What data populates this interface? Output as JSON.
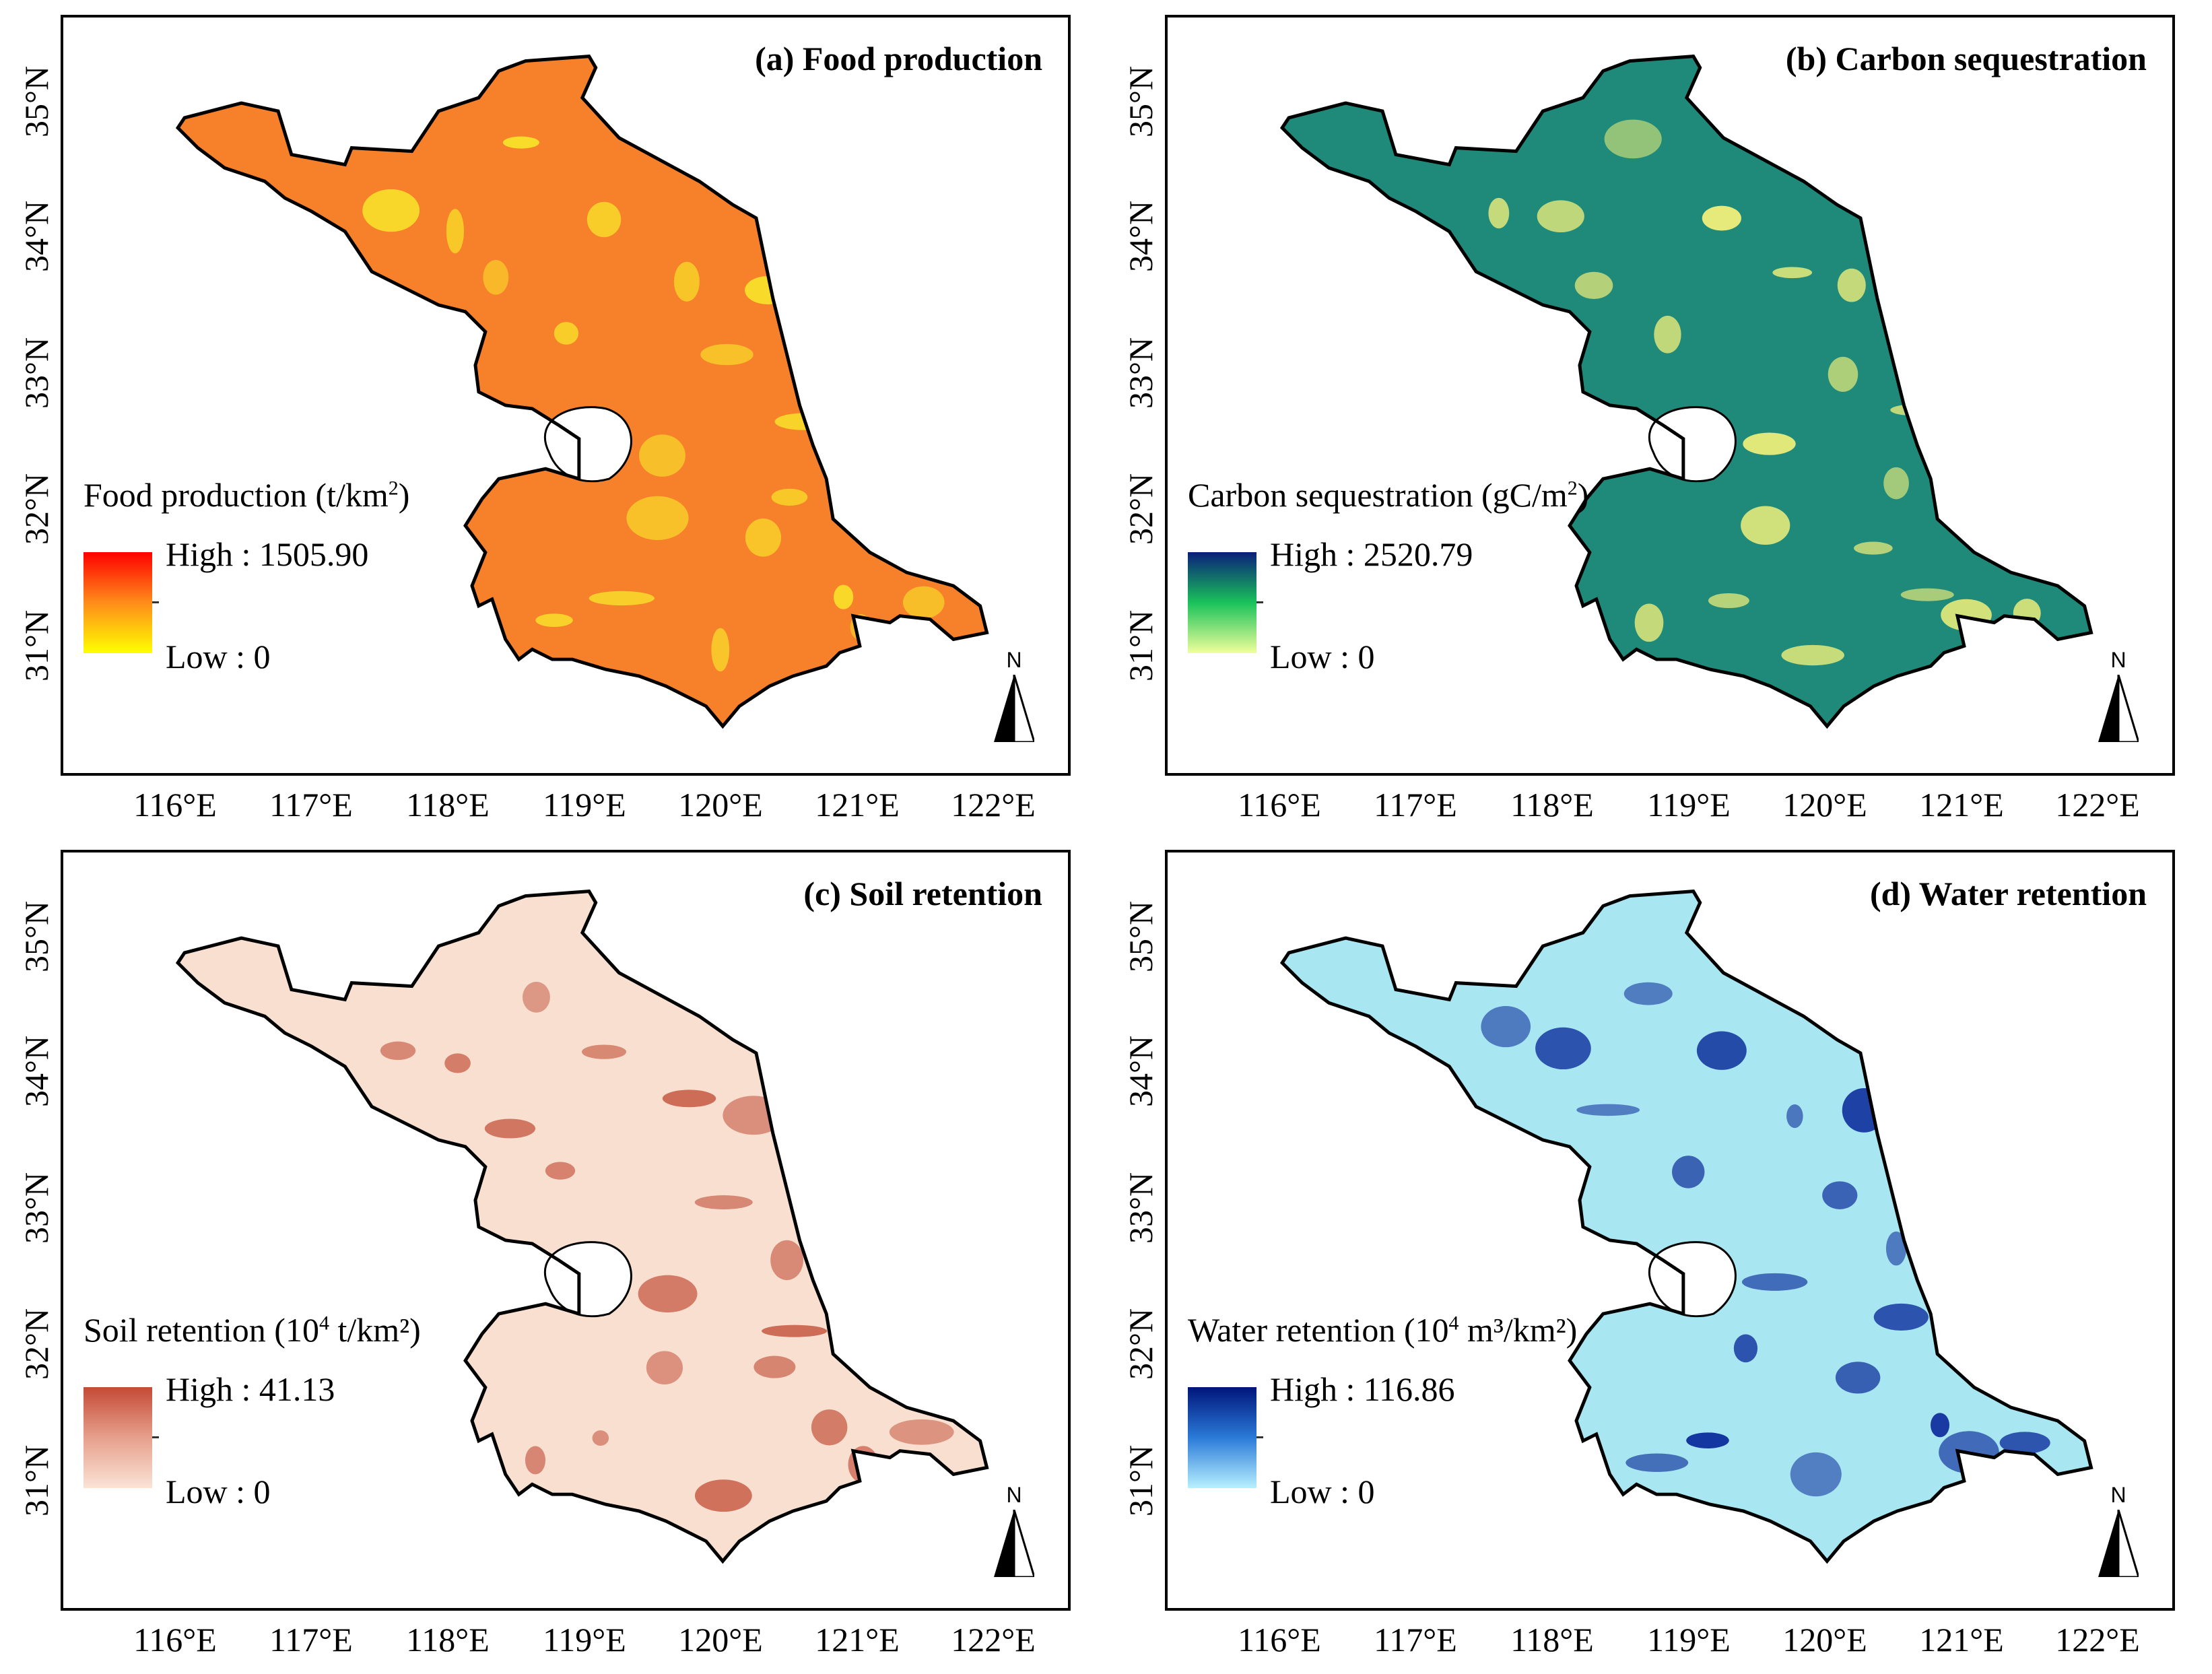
{
  "panels": [
    {
      "title": "(a) Food production",
      "legend": {
        "title_main": "Food production (t/km",
        "title_sup": "2",
        "title_end": ")",
        "high": "High : 1505.90",
        "low": "Low : 0"
      },
      "colors": {
        "fill": "#f7802a",
        "spot": "#f8e02a",
        "ramp_top": "#ff0000",
        "ramp_mid": "#ff8c1a",
        "ramp_bottom": "#ffff00",
        "lake": "#ffffff"
      },
      "north_icon": "north-arrow-icon"
    },
    {
      "title": "(b) Carbon sequestration",
      "legend": {
        "title_main": "Carbon sequestration (gC/m",
        "title_sup": "2",
        "title_end": ")",
        "high": "High : 2520.79",
        "low": "Low : 0"
      },
      "colors": {
        "fill": "#1f8a7a",
        "spot": "#f2f07a",
        "ramp_top": "#0a1f7a",
        "ramp_mid": "#19c25a",
        "ramp_bottom": "#f0ff9a",
        "lake": "#ffffff"
      },
      "north_icon": "north-arrow-icon"
    },
    {
      "title": "(c) Soil retention",
      "legend": {
        "title_main": "Soil retention (10",
        "title_sup": "4",
        "title_end": " t/km²)",
        "high": "High : 41.13",
        "low": "Low : 0"
      },
      "colors": {
        "fill": "#f9dfd0",
        "spot": "#c8604a",
        "ramp_top": "#c44a36",
        "ramp_mid": "#e6a08c",
        "ramp_bottom": "#fbe3d6",
        "lake": "#ffffff"
      },
      "north_icon": "north-arrow-icon"
    },
    {
      "title": "(d) Water retention",
      "legend": {
        "title_main": "Water retention (10",
        "title_sup": "4",
        "title_end": " m³/km²)",
        "high": "High : 116.86",
        "low": "Low : 0"
      },
      "colors": {
        "fill": "#a8e6f2",
        "spot": "#0a2a9a",
        "ramp_top": "#00157a",
        "ramp_mid": "#2a7ad8",
        "ramp_bottom": "#b8f0ff",
        "lake": "#ffffff"
      },
      "north_icon": "north-arrow-icon"
    }
  ],
  "latitude_labels": [
    "35°N",
    "34°N",
    "33°N",
    "32°N",
    "31°N"
  ],
  "longitude_labels": [
    "116°E",
    "117°E",
    "118°E",
    "119°E",
    "120°E",
    "121°E",
    "122°E"
  ],
  "north_label": "N"
}
